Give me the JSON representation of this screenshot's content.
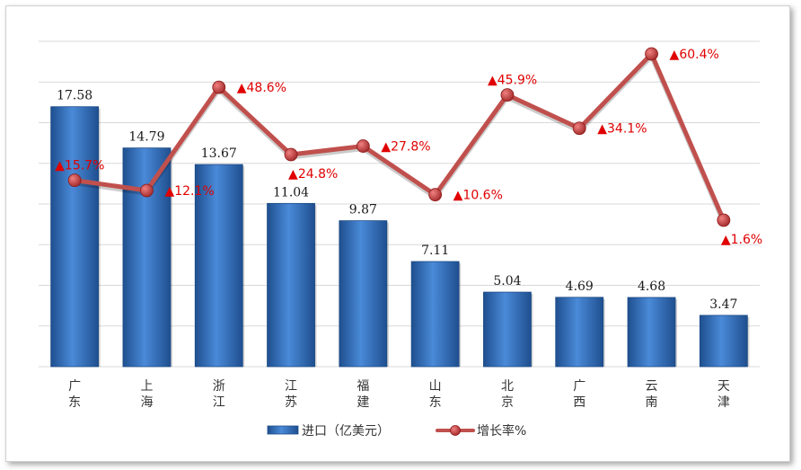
{
  "chart_data": {
    "type": "bar",
    "categories": [
      "广东",
      "上海",
      "浙江",
      "江苏",
      "福建",
      "山东",
      "北京",
      "广西",
      "云南",
      "天津"
    ],
    "series": [
      {
        "name": "进口（亿美元）",
        "type": "bar",
        "values": [
          17.58,
          14.79,
          13.67,
          11.04,
          9.87,
          7.11,
          5.04,
          4.69,
          4.68,
          3.47
        ],
        "labels": [
          "17.58",
          "14.79",
          "13.67",
          "11.04",
          "9.87",
          "7.11",
          "5.04",
          "4.69",
          "4.68",
          "3.47"
        ],
        "color": "#3a78c8"
      },
      {
        "name": "增长率%",
        "type": "line",
        "values": [
          15.7,
          12.1,
          48.6,
          24.8,
          27.8,
          10.6,
          45.9,
          34.1,
          60.4,
          1.6
        ],
        "labels": [
          "▲15.7%",
          "▲12.1%",
          "▲48.6%",
          "▲24.8%",
          "▲27.8%",
          "▲10.6%",
          "▲45.9%",
          "▲34.1%",
          "▲60.4%",
          "▲1.6%"
        ],
        "label_side": [
          "above",
          "right",
          "right",
          "below",
          "right",
          "right",
          "above",
          "right",
          "right",
          "below"
        ],
        "color": "#c0504d"
      }
    ],
    "legend": {
      "position": "bottom"
    },
    "grid": true
  }
}
